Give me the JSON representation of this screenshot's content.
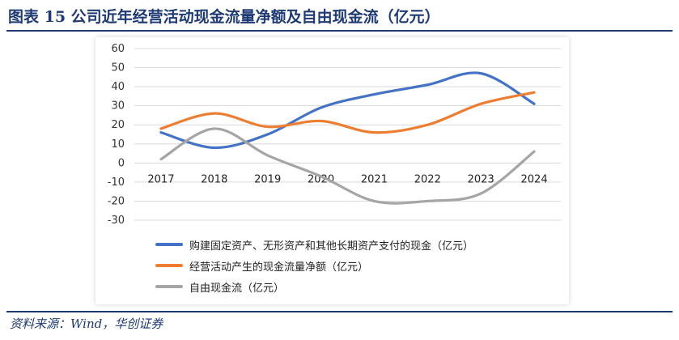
{
  "title": "图表 15   公司近年经营活动现金流量净额及自由现金流（亿元）",
  "source": "资料来源：Wind，华创证券",
  "colors": {
    "title": "#1f3a73",
    "grid": "#d9d9d9",
    "series": [
      "#4472c4",
      "#ed7d31",
      "#a5a5a5"
    ]
  },
  "chart_data": {
    "type": "line",
    "categories": [
      "2017",
      "2018",
      "2019",
      "2020",
      "2021",
      "2022",
      "2023",
      "2024"
    ],
    "series": [
      {
        "name": "购建固定资产、无形资产和其他长期资产支付的现金（亿元）",
        "values": [
          16,
          8,
          15,
          29,
          36,
          41,
          47,
          31
        ]
      },
      {
        "name": "经营活动产生的现金流量净额（亿元）",
        "values": [
          18,
          26,
          19,
          22,
          16,
          20,
          31,
          37
        ]
      },
      {
        "name": "自由现金流（亿元）",
        "values": [
          2,
          18,
          4,
          -7,
          -20,
          -20,
          -16,
          6
        ]
      }
    ],
    "yticks": [
      "60",
      "50",
      "40",
      "30",
      "20",
      "10",
      "0",
      "-10",
      "-20",
      "-30"
    ],
    "ylim": [
      -30,
      60
    ],
    "grid": true,
    "smooth": true,
    "legend_position": "bottom"
  }
}
